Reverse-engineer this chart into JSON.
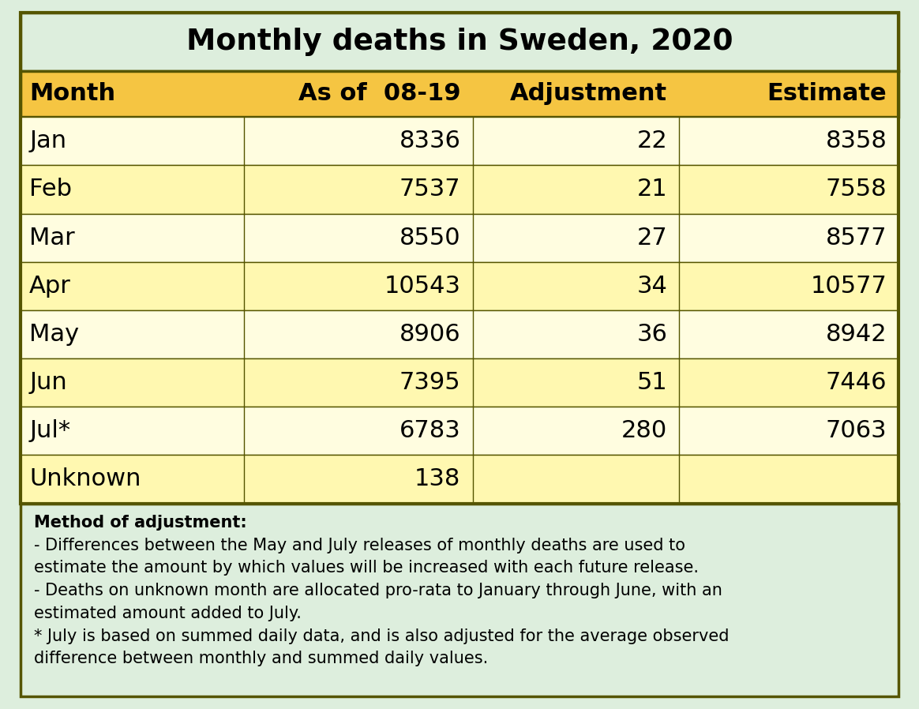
{
  "title": "Monthly deaths in Sweden, 2020",
  "title_bg": "#ddeedd",
  "header_bg": "#f5c542",
  "col_headers": [
    "Month",
    "As of  08-19",
    "Adjustment",
    "Estimate"
  ],
  "rows": [
    {
      "month": "Jan",
      "as_of": "8336",
      "adj": "22",
      "est": "8358"
    },
    {
      "month": "Feb",
      "as_of": "7537",
      "adj": "21",
      "est": "7558"
    },
    {
      "month": "Mar",
      "as_of": "8550",
      "adj": "27",
      "est": "8577"
    },
    {
      "month": "Apr",
      "as_of": "10543",
      "adj": "34",
      "est": "10577"
    },
    {
      "month": "May",
      "as_of": "8906",
      "adj": "36",
      "est": "8942"
    },
    {
      "month": "Jun",
      "as_of": "7395",
      "adj": "51",
      "est": "7446"
    },
    {
      "month": "Jul*",
      "as_of": "6783",
      "adj": "280",
      "est": "7063"
    },
    {
      "month": "Unknown",
      "as_of": "138",
      "adj": "",
      "est": ""
    }
  ],
  "row_colors": [
    "#fffde0",
    "#fff8b0"
  ],
  "note_bg": "#ddeedd",
  "note_bold": "Method of adjustment:",
  "note_lines": [
    "- Differences between the May and July releases of monthly deaths are used to",
    "estimate the amount by which values will be increased with each future release.",
    "- Deaths on unknown month are allocated pro-rata to January through June, with an",
    "estimated amount added to July.",
    "* July is based on summed daily data, and is also adjusted for the average observed",
    "difference between monthly and summed daily values."
  ],
  "outer_bg": "#ddeedd",
  "border_color": "#555500",
  "fig_w": 11.64,
  "fig_h": 8.98,
  "dpi": 100
}
